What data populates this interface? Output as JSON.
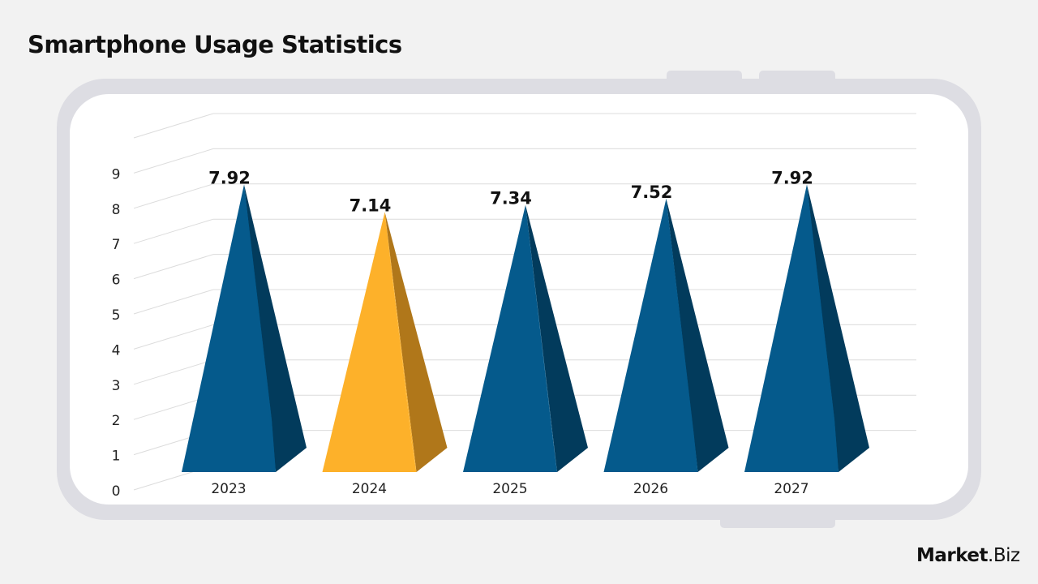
{
  "chart_data": {
    "type": "bar",
    "style": "3d-pyramid",
    "title": "Smartphone Usage Statistics",
    "categories": [
      "2023",
      "2024",
      "2025",
      "2026",
      "2027"
    ],
    "values": [
      7.92,
      7.14,
      7.34,
      7.52,
      7.92
    ],
    "data_labels": [
      "7.92",
      "7.14",
      "7.34",
      "7.52",
      "7.92"
    ],
    "y_ticks": [
      "0",
      "1",
      "2",
      "3",
      "4",
      "5",
      "6",
      "7",
      "8",
      "9"
    ],
    "ylim": [
      0,
      10
    ],
    "grid": true,
    "colors": {
      "default": "#055a8c",
      "default_side": "#023b5c",
      "highlight": "#fdb12a",
      "highlight_side": "#b0771a"
    },
    "highlight_index": 1
  },
  "brand": {
    "logo": "Market.Biz"
  }
}
